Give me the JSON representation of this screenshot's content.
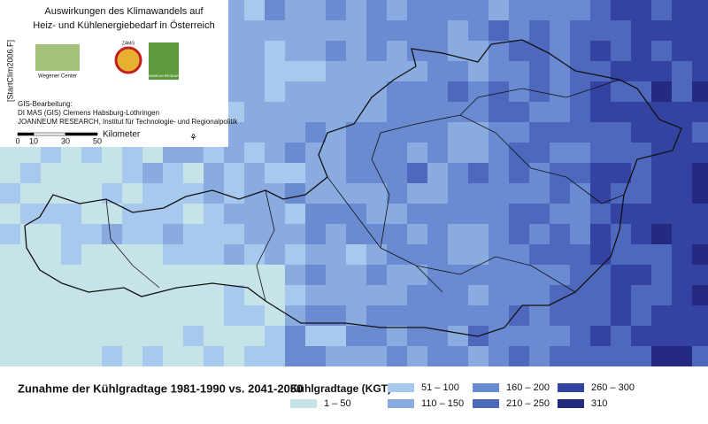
{
  "header": {
    "project": "[StartClim2006.F]",
    "title_lines": [
      "Auswirkungen des Klimawandels auf",
      "Heiz- und Kühlenergiebedarf in Österreich"
    ],
    "logos": [
      "Wegener Center",
      "ZAMG",
      "JOANNEUM RESEARCH"
    ]
  },
  "credits": {
    "lines": [
      "GIS-Bearbeitung:",
      "DI MAS (GIS) Clemens Habsburg-Lothringen",
      "JOANNEUM RESEARCH, Institut für Technologie- und Regionalpolitik"
    ]
  },
  "scale": {
    "ticks": [
      0,
      10,
      30,
      50
    ],
    "unit": "Kilometer"
  },
  "legend": {
    "title": "Zunahme der Kühlgradtage 1981-1990 vs. 2041-2050",
    "subtitle": "Kühlgradtage (KGT)",
    "classes": [
      {
        "label": "1 – 50",
        "color": "#c6e4e8"
      },
      {
        "label": "51 – 100",
        "color": "#a8c9ee"
      },
      {
        "label": "110 – 150",
        "color": "#8aabdf"
      },
      {
        "label": "160 – 200",
        "color": "#6a8bd2"
      },
      {
        "label": "210 – 250",
        "color": "#4d68bd"
      },
      {
        "label": "260 – 300",
        "color": "#3443a2"
      },
      {
        "label": "310",
        "color": "#242a80"
      }
    ]
  }
}
